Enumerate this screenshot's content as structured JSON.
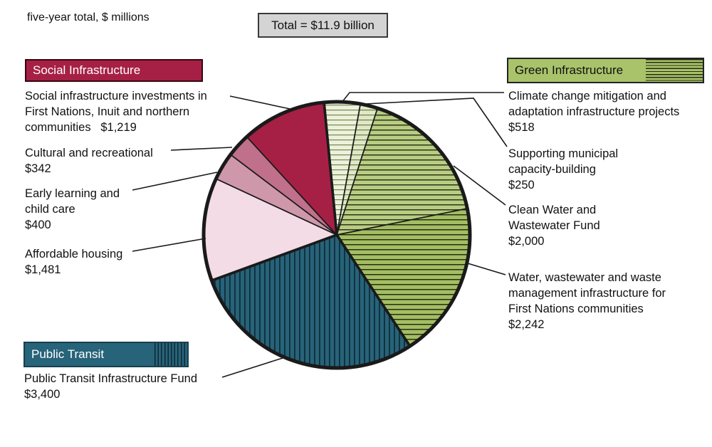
{
  "title": "five-year total, $ millions",
  "total_box": "Total = $11.9 billion",
  "legend": {
    "social": "Social Infrastructure",
    "green": "Green Infrastructure",
    "transit": "Public Transit"
  },
  "chart_data": {
    "type": "pie",
    "units": "$ millions",
    "total_label": "Total = $11.9 billion",
    "total_value": 11852,
    "start_angle_deg": -5.5,
    "legend_position": "corners",
    "groups": [
      {
        "name": "Green Infrastructure",
        "color": "#A9C36B",
        "pattern": "horizontal-stripes"
      },
      {
        "name": "Public Transit",
        "color": "#276379",
        "pattern": "vertical-stripes"
      },
      {
        "name": "Social Infrastructure",
        "color": "#A62045",
        "pattern": "solid"
      }
    ],
    "slices": [
      {
        "label": "Climate change mitigation and adaptation infrastructure projects",
        "value": 518,
        "group": "Green Infrastructure",
        "fill": "#ECF1DC",
        "stripe_dir": "h",
        "stripe_color": "#75854E",
        "stripe_w": 1.2,
        "stripe_gap": 7
      },
      {
        "label": "Supporting municipal capacity-building",
        "value": 250,
        "group": "Green Infrastructure",
        "fill": "#DFE8C6",
        "stripe_dir": "h",
        "stripe_color": "#6C7C46",
        "stripe_w": 1.2,
        "stripe_gap": 7
      },
      {
        "label": "Clean Water and Wastewater Fund",
        "value": 2000,
        "group": "Green Infrastructure",
        "fill": "#B8CD82",
        "stripe_dir": "h",
        "stripe_color": "#2E3517",
        "stripe_w": 1.5,
        "stripe_gap": 7
      },
      {
        "label": "Water, wastewater and waste management infrastructure for First Nations communities",
        "value": 2242,
        "group": "Green Infrastructure",
        "fill": "#A4BE63",
        "stripe_dir": "h",
        "stripe_color": "#272D12",
        "stripe_w": 1.5,
        "stripe_gap": 7
      },
      {
        "label": "Public Transit Infrastructure Fund",
        "value": 3400,
        "group": "Public Transit",
        "fill": "#276379",
        "stripe_dir": "v",
        "stripe_color": "#0F2D3A",
        "stripe_w": 1.8,
        "stripe_gap": 7
      },
      {
        "label": "Affordable housing",
        "value": 1481,
        "group": "Social Infrastructure",
        "fill": "#F3DCE6"
      },
      {
        "label": "Early learning and child care",
        "value": 400,
        "group": "Social Infrastructure",
        "fill": "#CF97AA"
      },
      {
        "label": "Cultural and recreational",
        "value": 342,
        "group": "Social Infrastructure",
        "fill": "#C0708B"
      },
      {
        "label": "Social infrastructure investments in First Nations, Inuit and northern communities",
        "value": 1219,
        "group": "Social Infrastructure",
        "fill": "#A62045"
      }
    ]
  },
  "callouts": [
    {
      "text": "Climate change mitigation and\nadaptation infrastructure projects\n$518"
    },
    {
      "text": "Supporting municipal\ncapacity-building\n$250"
    },
    {
      "text": "Clean Water and\nWastewater Fund\n$2,000"
    },
    {
      "text": "Water, wastewater and waste\nmanagement infrastructure for\nFirst Nations communities\n$2,242"
    },
    {
      "text": "Public Transit Infrastructure Fund\n$3,400"
    },
    {
      "text": "Affordable housing\n$1,481"
    },
    {
      "text": "Early learning and\nchild care\n$400"
    },
    {
      "text": "Cultural and recreational\n$342"
    },
    {
      "text": "Social infrastructure investments in\nFirst Nations, Inuit and northern\ncommunities   $1,219"
    }
  ]
}
